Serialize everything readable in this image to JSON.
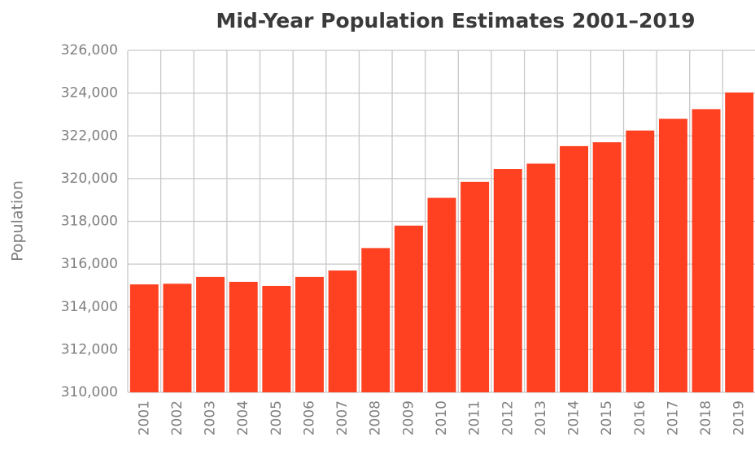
{
  "chart_data": {
    "type": "bar",
    "title": "Mid-Year Population Estimates 2001–2019",
    "y_axis_label": "Population",
    "categories": [
      "2001",
      "2002",
      "2003",
      "2004",
      "2005",
      "2006",
      "2007",
      "2008",
      "2009",
      "2010",
      "2011",
      "2012",
      "2013",
      "2014",
      "2015",
      "2016",
      "2017",
      "2018",
      "2019"
    ],
    "values": [
      315050,
      315080,
      315400,
      315170,
      314980,
      315400,
      315700,
      316750,
      317800,
      319100,
      319850,
      320450,
      320700,
      321520,
      321700,
      322250,
      322800,
      323250,
      324030
    ],
    "color": "#ff4122",
    "ylim": [
      310000,
      326000
    ],
    "yticks": [
      {
        "value": 310000,
        "label": "310,000"
      },
      {
        "value": 312000,
        "label": "312,000"
      },
      {
        "value": 314000,
        "label": "314,000"
      },
      {
        "value": 316000,
        "label": "316,000"
      },
      {
        "value": 318000,
        "label": "318,000"
      },
      {
        "value": 320000,
        "label": "320,000"
      },
      {
        "value": 322000,
        "label": "322,000"
      },
      {
        "value": 324000,
        "label": "324,000"
      },
      {
        "value": 326000,
        "label": "326,000"
      }
    ],
    "grid": true
  }
}
